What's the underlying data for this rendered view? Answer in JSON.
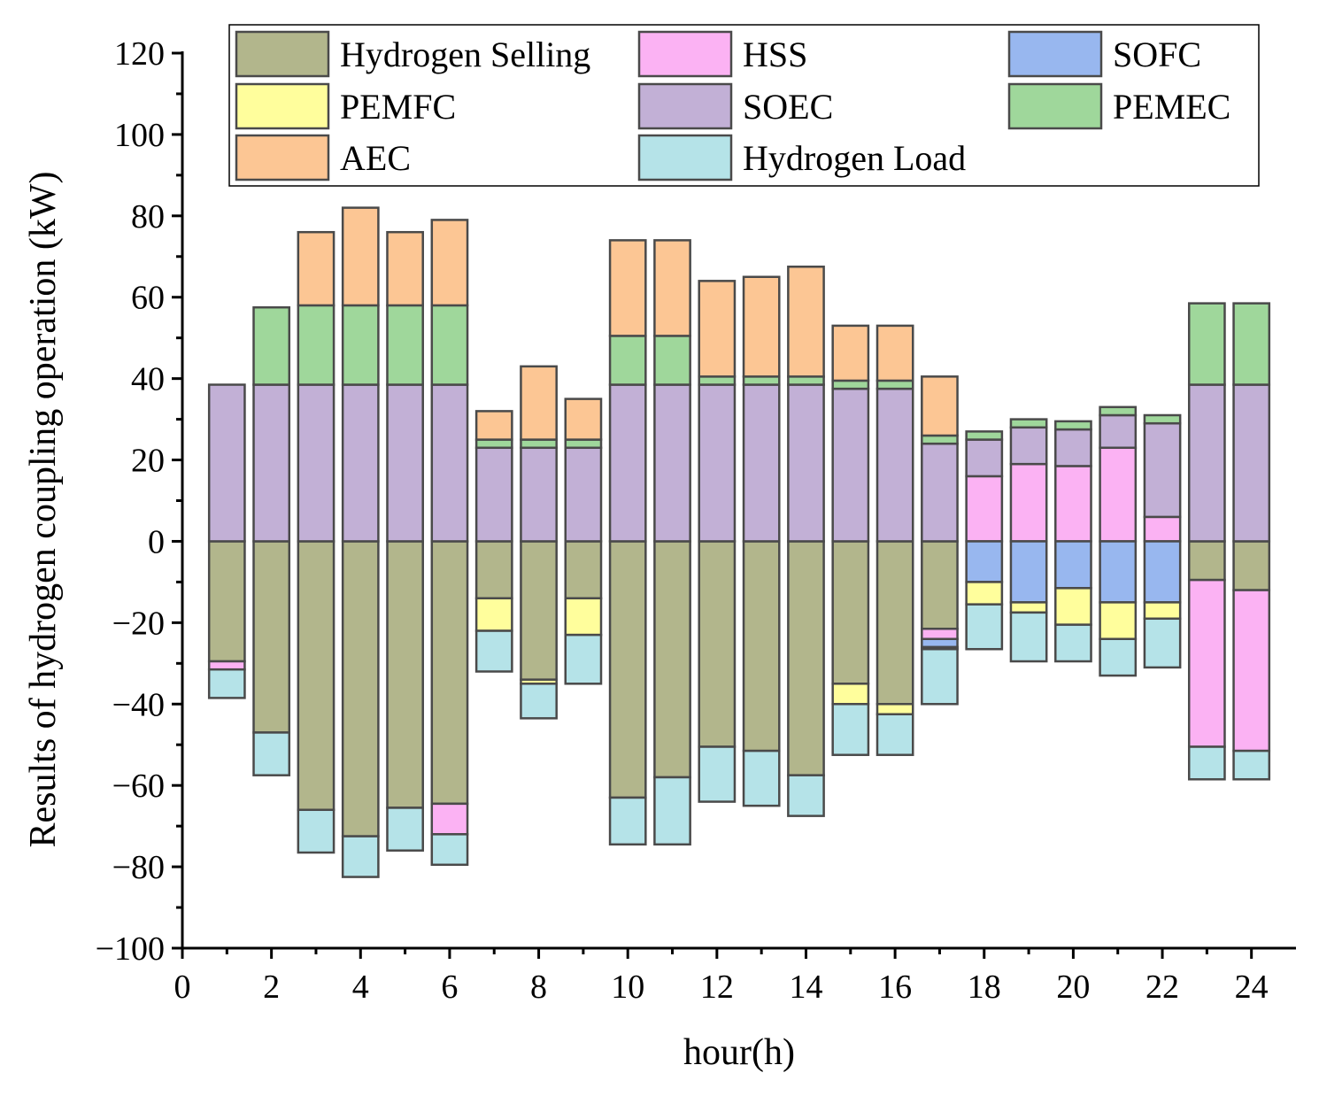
{
  "chart_data": {
    "type": "bar",
    "stacked": true,
    "title": "",
    "xlabel": "hour(h)",
    "ylabel": "Results of hydrogen coupling operation (kW)",
    "xlim": [
      0,
      25
    ],
    "ylim": [
      -100,
      120
    ],
    "xticks": [
      0,
      2,
      4,
      6,
      8,
      10,
      12,
      14,
      16,
      18,
      20,
      22,
      24
    ],
    "yticks": [
      -100,
      -80,
      -60,
      -40,
      -20,
      0,
      20,
      40,
      60,
      80,
      100,
      120
    ],
    "legend_position": "top",
    "categories": [
      1,
      2,
      3,
      4,
      5,
      6,
      7,
      8,
      9,
      10,
      11,
      12,
      13,
      14,
      15,
      16,
      17,
      18,
      19,
      20,
      21,
      22,
      23,
      24
    ],
    "series": [
      {
        "name": "Hydrogen Selling",
        "color": "#b2b68c",
        "values": [
          -29.5,
          -47,
          -66,
          -72.5,
          -65.5,
          -64.5,
          -14,
          -34,
          -14,
          -63,
          -58,
          -50.5,
          -51.5,
          -57.5,
          -35,
          -40,
          -21.5,
          0,
          0,
          0,
          0,
          0,
          -9.5,
          -12
        ]
      },
      {
        "name": "HSS",
        "color": "#fbb2f3",
        "values": [
          -2,
          0,
          0,
          0,
          0,
          -7.5,
          0,
          0,
          0,
          0,
          0,
          0,
          0,
          0,
          0,
          0,
          -2.5,
          16,
          19,
          18.5,
          23,
          6,
          -41,
          -39.5
        ]
      },
      {
        "name": "SOFC",
        "color": "#98b7ef",
        "values": [
          0,
          0,
          0,
          0,
          0,
          0,
          0,
          0,
          0,
          0,
          0,
          0,
          0,
          0,
          0,
          0,
          -2,
          -10,
          -15,
          -11.5,
          -15,
          -15,
          0,
          0
        ]
      },
      {
        "name": "PEMFC",
        "color": "#fffe9c",
        "values": [
          0,
          0,
          0,
          0,
          0,
          0,
          -8,
          -1,
          -9,
          0,
          0,
          0,
          0,
          0,
          -5,
          -2.5,
          -0.5,
          -5.5,
          -2.5,
          -9,
          -9,
          -4,
          0,
          0
        ]
      },
      {
        "name": "SOEC",
        "color": "#c2b0d6",
        "values": [
          38.5,
          38.5,
          38.5,
          38.5,
          38.5,
          38.5,
          23,
          23,
          23,
          38.5,
          38.5,
          38.5,
          38.5,
          38.5,
          37.5,
          37.5,
          24,
          9,
          9,
          9,
          8,
          23,
          38.5,
          38.5
        ]
      },
      {
        "name": "PEMEC",
        "color": "#9fd79b",
        "values": [
          0,
          19,
          19.5,
          19.5,
          19.5,
          19.5,
          2,
          2,
          2,
          12,
          12,
          2,
          2,
          2,
          2,
          2,
          2,
          2,
          2,
          2,
          2,
          2,
          20,
          20
        ]
      },
      {
        "name": "AEC",
        "color": "#fcc694",
        "values": [
          0,
          0,
          18,
          24,
          18,
          21,
          7,
          18,
          10,
          23.5,
          23.5,
          23.5,
          24.5,
          27,
          13.5,
          13.5,
          14.5,
          0,
          0,
          0,
          0,
          0,
          0,
          0
        ]
      },
      {
        "name": "Hydrogen Load",
        "color": "#b5e3e8",
        "values": [
          -7,
          -10.5,
          -10.5,
          -10,
          -10.5,
          -7.5,
          -10,
          -8.5,
          -12,
          -11.5,
          -16.5,
          -13.5,
          -13.5,
          -10,
          -12.5,
          -10,
          -13.5,
          -11,
          -12,
          -9,
          -9,
          -12,
          -8,
          -7
        ]
      }
    ],
    "legend": [
      "Hydrogen Selling",
      "HSS",
      "SOFC",
      "PEMFC",
      "SOEC",
      "PEMEC",
      "AEC",
      "Hydrogen Load"
    ]
  }
}
